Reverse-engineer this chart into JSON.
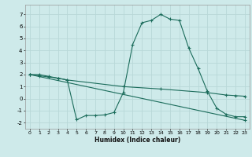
{
  "xlabel": "Humidex (Indice chaleur)",
  "bg_color": "#ceeaea",
  "grid_color": "#b8d8d8",
  "line_color": "#1a6b5a",
  "xlim": [
    -0.5,
    23.5
  ],
  "ylim": [
    -2.5,
    7.8
  ],
  "xticks": [
    0,
    1,
    2,
    3,
    4,
    5,
    6,
    7,
    8,
    9,
    10,
    11,
    12,
    13,
    14,
    15,
    16,
    17,
    18,
    19,
    20,
    21,
    22,
    23
  ],
  "yticks": [
    -2,
    -1,
    0,
    1,
    2,
    3,
    4,
    5,
    6,
    7
  ],
  "line1_x": [
    0,
    1,
    2,
    3,
    4,
    5,
    6,
    7,
    8,
    9,
    10,
    11,
    12,
    13,
    14,
    15,
    16,
    17,
    18,
    19,
    20,
    21,
    22,
    23
  ],
  "line1_y": [
    2.0,
    2.0,
    1.85,
    1.7,
    1.55,
    -1.75,
    -1.4,
    -1.4,
    -1.35,
    -1.15,
    0.5,
    4.5,
    6.3,
    6.5,
    7.0,
    6.6,
    6.5,
    4.2,
    2.5,
    0.6,
    -0.8,
    -1.3,
    -1.5,
    -1.5
  ],
  "line2_x": [
    0,
    1,
    2,
    3,
    4,
    10,
    14,
    19,
    21,
    22,
    23
  ],
  "line2_y": [
    2.0,
    1.9,
    1.8,
    1.7,
    1.55,
    1.0,
    0.8,
    0.5,
    0.3,
    0.25,
    0.2
  ],
  "line3_x": [
    0,
    23
  ],
  "line3_y": [
    2.0,
    -1.8
  ],
  "figsize": [
    3.2,
    2.0
  ],
  "dpi": 100
}
